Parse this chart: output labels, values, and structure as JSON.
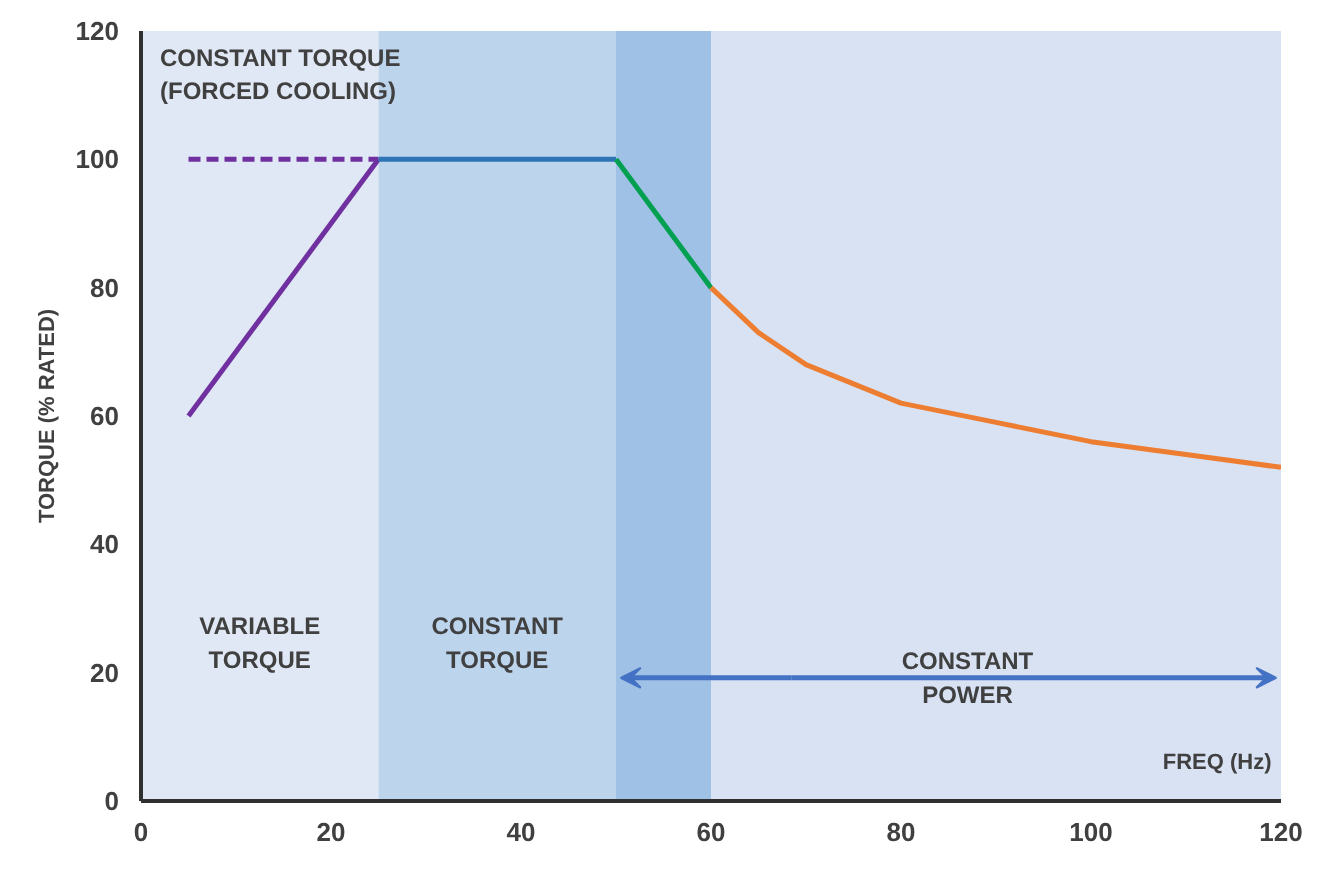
{
  "chart_data": {
    "type": "line",
    "ylabel": "TORQUE (% RATED)",
    "xlabel": "FREQ (Hz)",
    "xlim": [
      0,
      120
    ],
    "xticks": [
      0,
      20,
      40,
      60,
      80,
      100,
      120
    ],
    "ylim": [
      0,
      120
    ],
    "yticks": [
      0,
      20,
      40,
      60,
      80,
      100,
      120
    ],
    "grid": false,
    "marker": "none",
    "line_style": "solid",
    "series": [
      {
        "color": "#7030a0",
        "x": [
          5,
          25
        ],
        "values": [
          60,
          100
        ]
      },
      {
        "color": "#7030a0",
        "x": [
          5,
          25
        ],
        "values": [
          100,
          100
        ],
        "line_style": "dashed"
      },
      {
        "color": "#2e75b6",
        "x": [
          25,
          50
        ],
        "values": [
          100,
          100
        ]
      },
      {
        "color": "#00a050",
        "x": [
          50,
          60
        ],
        "values": [
          100,
          80
        ]
      },
      {
        "color": "#ed7d31",
        "x": [
          60,
          65,
          70,
          75,
          80,
          90,
          100,
          110,
          120
        ],
        "values": [
          80,
          73,
          68,
          65,
          62,
          59,
          56,
          54,
          52
        ]
      }
    ],
    "bands": [
      {
        "axis": "x",
        "from": 0,
        "to": 25,
        "label": "VARIABLE TORQUE",
        "color": "#dfe8f4"
      },
      {
        "axis": "x",
        "from": 25,
        "to": 50,
        "label": "CONSTANT TORQUE",
        "color": "#bdd4ed"
      },
      {
        "axis": "x",
        "from": 50,
        "to": 60,
        "color": "#9fc1e6"
      },
      {
        "axis": "x",
        "from": 60,
        "to": 120,
        "color": "#d8e2f2"
      }
    ],
    "annotations": [
      "CONSTANT TORQUE (FORCED COOLING)",
      "CONSTANT POWER"
    ]
  }
}
